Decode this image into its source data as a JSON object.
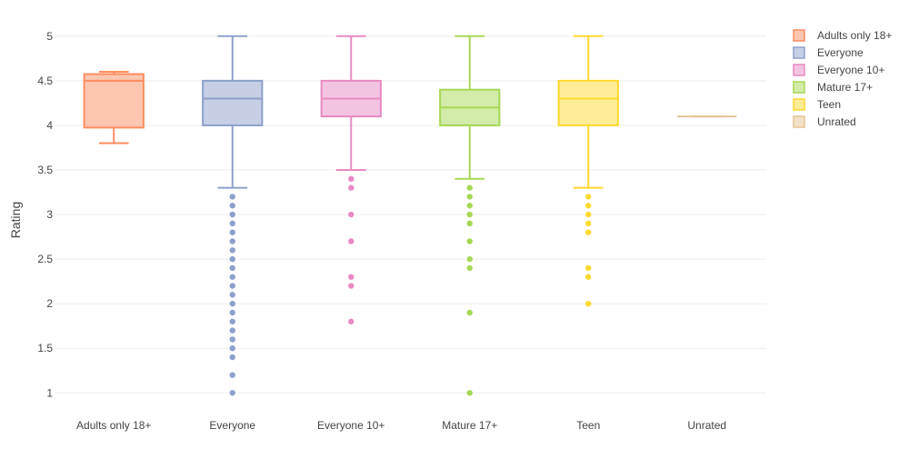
{
  "chart_data": {
    "type": "box",
    "title": "",
    "xlabel": "",
    "ylabel": "Rating",
    "ylim": [
      0.85,
      5.1
    ],
    "yticks": [
      {
        "value": 1,
        "label": "1"
      },
      {
        "value": 1.5,
        "label": "1.5"
      },
      {
        "value": 2,
        "label": "2"
      },
      {
        "value": 2.5,
        "label": "2.5"
      },
      {
        "value": 3,
        "label": "3"
      },
      {
        "value": 3.5,
        "label": "3.5"
      },
      {
        "value": 4,
        "label": "4"
      },
      {
        "value": 4.5,
        "label": "4.5"
      },
      {
        "value": 5,
        "label": "5"
      }
    ],
    "grid": true,
    "legend": "top-right",
    "series": [
      {
        "name": "Adults only 18+",
        "color": "#fc8d62",
        "lowerfence": 3.8,
        "q1": 3.975,
        "median": 4.5,
        "q3": 4.575,
        "upperfence": 4.6,
        "outliers": []
      },
      {
        "name": "Everyone",
        "color": "#8da0cb",
        "lowerfence": 3.3,
        "q1": 4.0,
        "median": 4.3,
        "q3": 4.5,
        "upperfence": 5.0,
        "outliers": [
          3.2,
          3.1,
          3.0,
          2.9,
          2.8,
          2.7,
          2.6,
          2.5,
          2.4,
          2.3,
          2.2,
          2.1,
          2.0,
          1.9,
          1.8,
          1.7,
          1.6,
          1.5,
          1.4,
          1.2,
          1.0
        ]
      },
      {
        "name": "Everyone 10+",
        "color": "#e78ac3",
        "lowerfence": 3.5,
        "q1": 4.1,
        "median": 4.3,
        "q3": 4.5,
        "upperfence": 5.0,
        "outliers": [
          3.4,
          3.3,
          3.0,
          2.7,
          2.3,
          2.2,
          1.8
        ]
      },
      {
        "name": "Mature 17+",
        "color": "#a6d854",
        "lowerfence": 3.4,
        "q1": 4.0,
        "median": 4.2,
        "q3": 4.4,
        "upperfence": 5.0,
        "outliers": [
          3.3,
          3.2,
          3.1,
          3.0,
          2.9,
          2.7,
          2.5,
          2.4,
          1.9,
          1.0
        ]
      },
      {
        "name": "Teen",
        "color": "#ffd92f",
        "lowerfence": 3.3,
        "q1": 4.0,
        "median": 4.3,
        "q3": 4.5,
        "upperfence": 5.0,
        "outliers": [
          3.2,
          3.1,
          3.0,
          2.9,
          2.8,
          2.4,
          2.3,
          2.0
        ]
      },
      {
        "name": "Unrated",
        "color": "#e5c494",
        "lowerfence": 4.1,
        "q1": 4.1,
        "median": 4.1,
        "q3": 4.1,
        "upperfence": 4.1,
        "outliers": []
      }
    ]
  }
}
